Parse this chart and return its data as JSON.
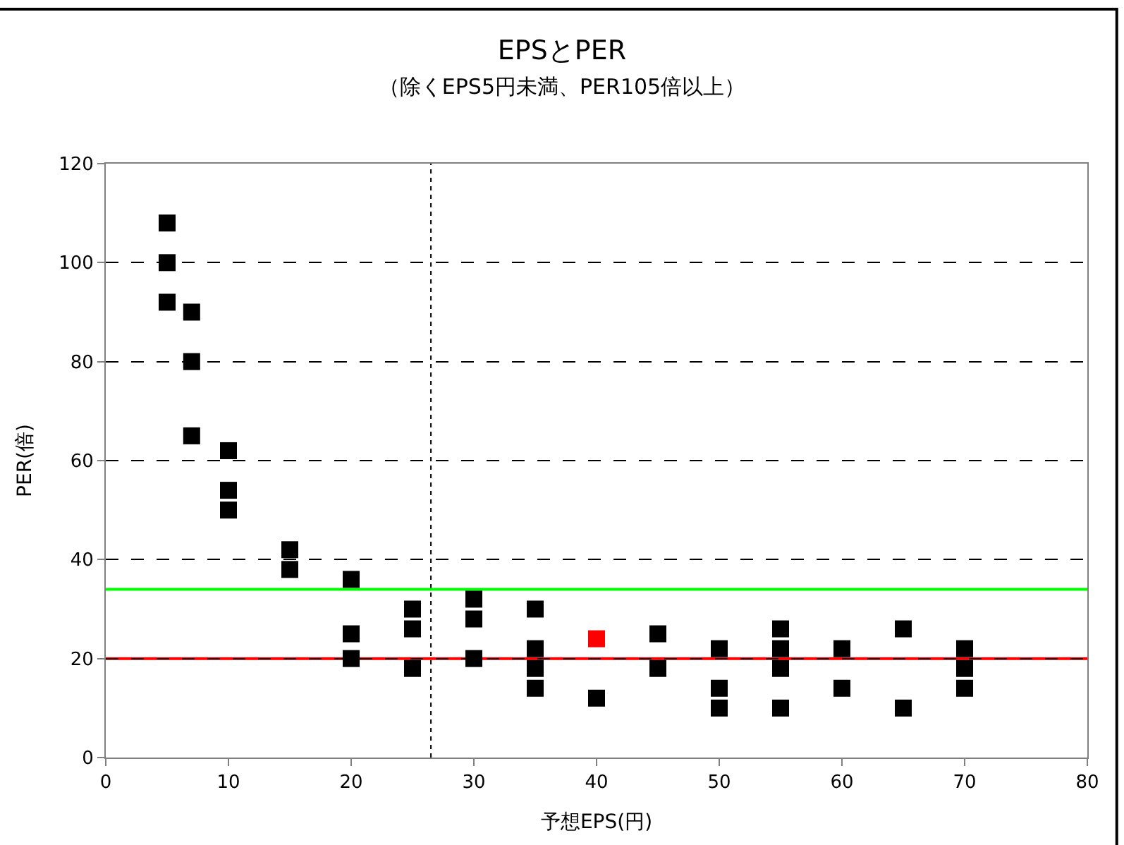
{
  "chart_data": {
    "type": "scatter",
    "title": "EPSとPER",
    "subtitle": "（除くEPS5円未満、PER105倍以上）",
    "xlabel": "予想EPS(円)",
    "ylabel": "PER(倍)",
    "xlim": [
      0,
      80
    ],
    "xticks": [
      0,
      10,
      20,
      30,
      40,
      50,
      60,
      70,
      80
    ],
    "ylim": [
      0,
      120
    ],
    "yticks": [
      0,
      20,
      40,
      60,
      80,
      100,
      120
    ],
    "grid": "y",
    "marker": "square",
    "series": [
      {
        "color": "#000000",
        "x": [
          5,
          5,
          5,
          7,
          7,
          7,
          10,
          10,
          10,
          15,
          15,
          20,
          20,
          20,
          25,
          25,
          25,
          30,
          30,
          30,
          35,
          35,
          35,
          35,
          40,
          45,
          45,
          50,
          50,
          50,
          55,
          55,
          55,
          55,
          60,
          60,
          65,
          65,
          70,
          70,
          70
        ],
        "values": [
          108,
          100,
          92,
          90,
          80,
          65,
          62,
          54,
          50,
          42,
          38,
          36,
          25,
          20,
          30,
          26,
          18,
          32,
          28,
          20,
          30,
          22,
          18,
          14,
          12,
          25,
          18,
          22,
          14,
          10,
          26,
          22,
          18,
          10,
          22,
          14,
          26,
          10,
          22,
          18,
          14
        ]
      },
      {
        "color": "#ff0000",
        "x": [
          40
        ],
        "values": [
          24
        ]
      }
    ],
    "ref_lines": [
      {
        "axis": "x",
        "value": 26.5,
        "color": "#000000",
        "line_style": "dotted"
      },
      {
        "axis": "y",
        "value": 34,
        "color": "#00ff00",
        "line_style": "solid"
      },
      {
        "axis": "y",
        "value": 20,
        "color": "#ff0000",
        "line_style": "solid"
      }
    ]
  }
}
